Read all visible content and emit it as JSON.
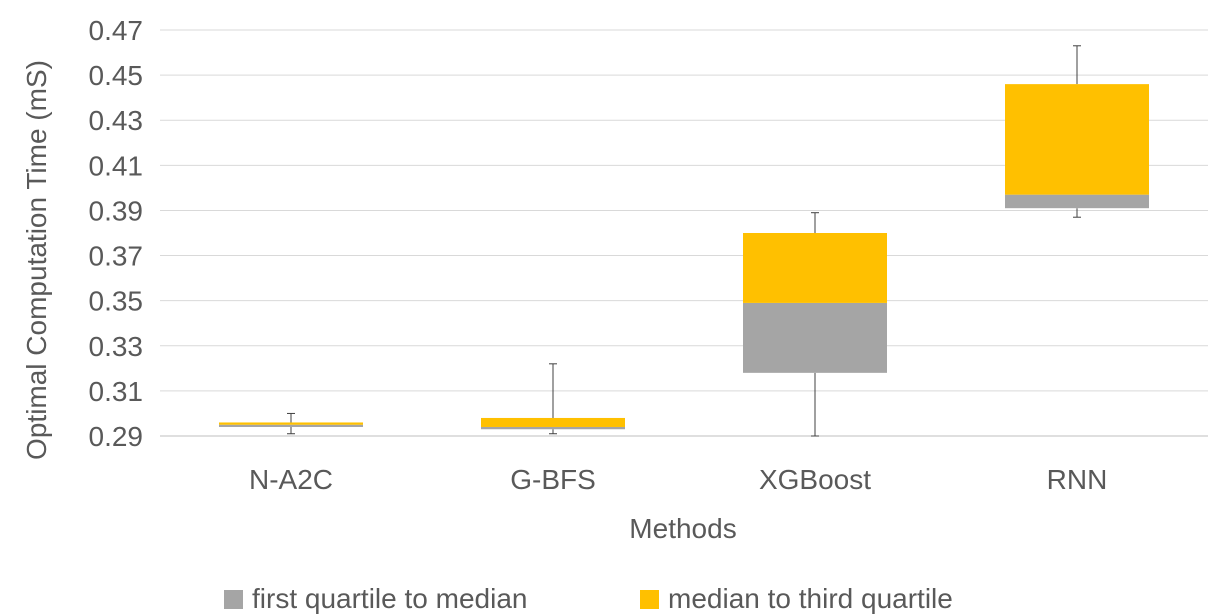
{
  "chart_data": {
    "type": "boxplot",
    "xlabel": "Methods",
    "ylabel": "Optimal Computation Time (mS)",
    "ylim": [
      0.28,
      0.47
    ],
    "yticks": [
      "0.29",
      "0.31",
      "0.33",
      "0.35",
      "0.37",
      "0.39",
      "0.41",
      "0.43",
      "0.45",
      "0.47"
    ],
    "grid": true,
    "legend_position": "bottom",
    "categories": [
      "N-A2C",
      "G-BFS",
      "XGBoost",
      "RNN"
    ],
    "series": [
      {
        "name": "first quartile to median",
        "color": "#a5a5a5"
      },
      {
        "name": "median to third quartile",
        "color": "#ffc000"
      }
    ],
    "boxes": [
      {
        "category": "N-A2C",
        "min": 0.291,
        "q1": 0.294,
        "median": 0.295,
        "q3": 0.296,
        "max": 0.3
      },
      {
        "category": "G-BFS",
        "min": 0.291,
        "q1": 0.293,
        "median": 0.294,
        "q3": 0.298,
        "max": 0.322
      },
      {
        "category": "XGBoost",
        "min": 0.29,
        "q1": 0.318,
        "median": 0.349,
        "q3": 0.38,
        "max": 0.389
      },
      {
        "category": "RNN",
        "min": 0.387,
        "q1": 0.391,
        "median": 0.397,
        "q3": 0.446,
        "max": 0.463
      }
    ]
  }
}
